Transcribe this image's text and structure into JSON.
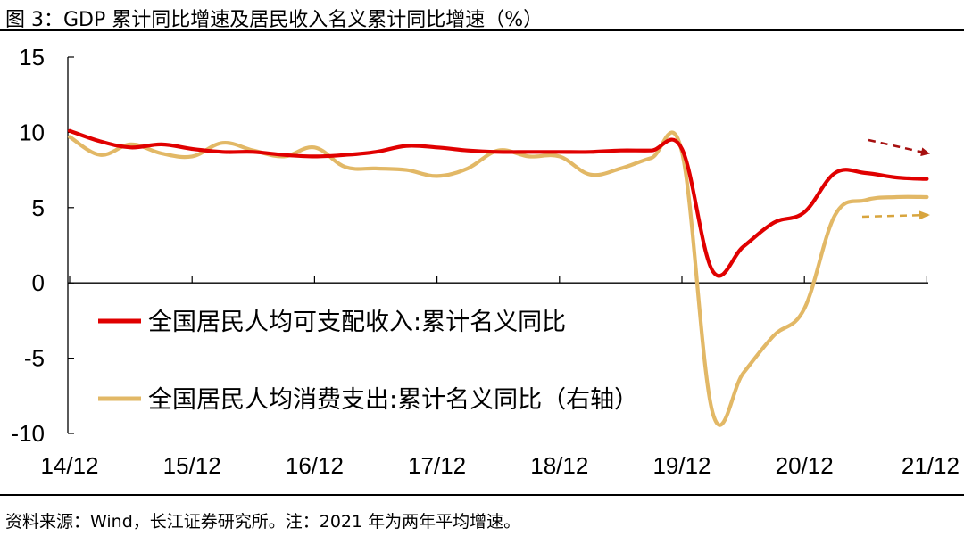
{
  "title": "图 3：GDP 累计同比增速及居民收入名义累计同比增速（%）",
  "source": "资料来源：Wind，长江证券研究所。注：2021 年为两年平均增速。",
  "chart_data": {
    "type": "line",
    "title": "图 3：GDP 累计同比增速及居民收入名义累计同比增速（%）",
    "xlabel": "",
    "ylabel": "",
    "x_categories": [
      "14/12",
      "15/12",
      "16/12",
      "17/12",
      "18/12",
      "19/12",
      "20/12",
      "21/12"
    ],
    "ylim": [
      -10,
      15
    ],
    "yticks": [
      15,
      10,
      5,
      0,
      -5,
      -10
    ],
    "grid": false,
    "legend_position": "lower-left",
    "series": [
      {
        "name": "全国居民人均可支配收入:累计名义同比",
        "color": "#e00000",
        "points": [
          [
            0,
            10.1
          ],
          [
            0.25,
            9.4
          ],
          [
            0.5,
            9.0
          ],
          [
            0.75,
            9.2
          ],
          [
            1.0,
            8.9
          ],
          [
            1.25,
            8.7
          ],
          [
            1.5,
            8.7
          ],
          [
            1.75,
            8.5
          ],
          [
            2.0,
            8.4
          ],
          [
            2.25,
            8.5
          ],
          [
            2.5,
            8.7
          ],
          [
            2.75,
            9.1
          ],
          [
            3.0,
            9.0
          ],
          [
            3.25,
            8.8
          ],
          [
            3.5,
            8.7
          ],
          [
            3.75,
            8.7
          ],
          [
            4.0,
            8.7
          ],
          [
            4.25,
            8.7
          ],
          [
            4.5,
            8.8
          ],
          [
            4.75,
            8.8
          ],
          [
            5.0,
            8.9
          ],
          [
            5.25,
            0.8
          ],
          [
            5.5,
            2.4
          ],
          [
            5.75,
            4.0
          ],
          [
            6.0,
            4.7
          ],
          [
            6.25,
            7.3
          ],
          [
            6.5,
            7.3
          ],
          [
            6.75,
            7.0
          ],
          [
            7.0,
            6.9
          ]
        ]
      },
      {
        "name": "全国居民人均消费支出:累计名义同比（右轴）",
        "color": "#e2b866",
        "points": [
          [
            0,
            9.7
          ],
          [
            0.25,
            8.5
          ],
          [
            0.5,
            9.2
          ],
          [
            0.75,
            8.6
          ],
          [
            1.0,
            8.4
          ],
          [
            1.25,
            9.3
          ],
          [
            1.5,
            8.8
          ],
          [
            1.75,
            8.4
          ],
          [
            2.0,
            9.0
          ],
          [
            2.25,
            7.7
          ],
          [
            2.5,
            7.6
          ],
          [
            2.75,
            7.5
          ],
          [
            3.0,
            7.1
          ],
          [
            3.25,
            7.6
          ],
          [
            3.5,
            8.8
          ],
          [
            3.75,
            8.4
          ],
          [
            4.0,
            8.4
          ],
          [
            4.25,
            7.2
          ],
          [
            4.5,
            7.6
          ],
          [
            4.75,
            8.3
          ],
          [
            5.0,
            8.7
          ],
          [
            5.25,
            -8.6
          ],
          [
            5.5,
            -6.0
          ],
          [
            5.75,
            -3.5
          ],
          [
            6.0,
            -1.7
          ],
          [
            6.25,
            4.5
          ],
          [
            6.5,
            5.5
          ],
          [
            6.75,
            5.7
          ],
          [
            7.0,
            5.7
          ]
        ]
      }
    ]
  }
}
